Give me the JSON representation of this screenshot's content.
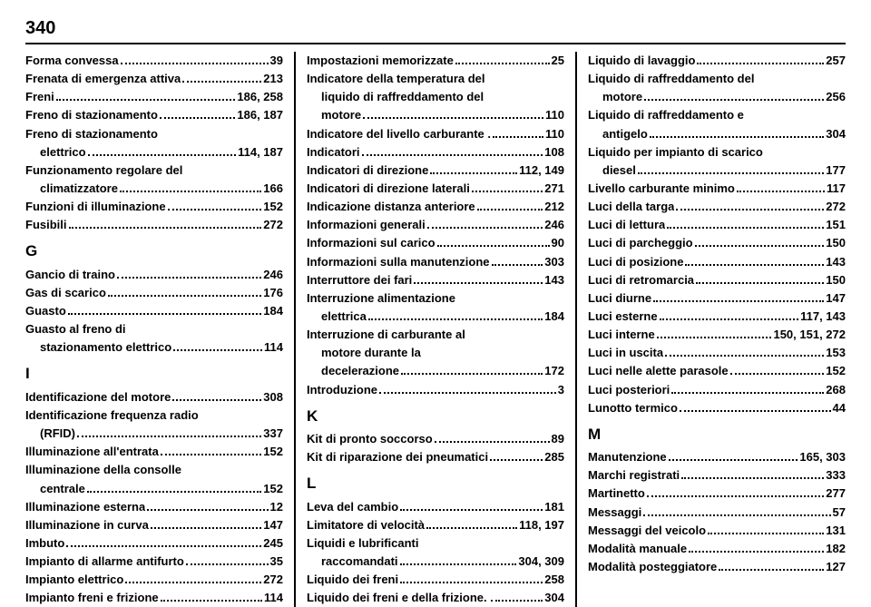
{
  "pageNumber": "340",
  "columns": [
    {
      "items": [
        {
          "type": "entry",
          "label": "Forma convessa",
          "page": "39"
        },
        {
          "type": "entry",
          "label": "Frenata di emergenza attiva",
          "page": "213"
        },
        {
          "type": "entry",
          "label": "Freni",
          "page": "186, 258"
        },
        {
          "type": "entry",
          "label": "Freno di stazionamento",
          "page": "186, 187"
        },
        {
          "type": "entry",
          "label": "Freno di stazionamento"
        },
        {
          "type": "entry",
          "label": "elettrico",
          "indent": true,
          "page": "114, 187"
        },
        {
          "type": "entry",
          "label": "Funzionamento regolare del"
        },
        {
          "type": "entry",
          "label": "climatizzatore",
          "indent": true,
          "page": "166"
        },
        {
          "type": "entry",
          "label": "Funzioni di illuminazione",
          "page": "152"
        },
        {
          "type": "entry",
          "label": "Fusibili",
          "page": "272"
        },
        {
          "type": "letter",
          "label": "G"
        },
        {
          "type": "entry",
          "label": "Gancio di traino",
          "page": "246"
        },
        {
          "type": "entry",
          "label": "Gas di scarico",
          "page": "176"
        },
        {
          "type": "entry",
          "label": "Guasto",
          "page": "184"
        },
        {
          "type": "entry",
          "label": "Guasto al freno di"
        },
        {
          "type": "entry",
          "label": "stazionamento elettrico",
          "indent": true,
          "page": "114"
        },
        {
          "type": "letter",
          "label": "I"
        },
        {
          "type": "entry",
          "label": "Identificazione del motore",
          "page": "308"
        },
        {
          "type": "entry",
          "label": "Identificazione frequenza radio"
        },
        {
          "type": "entry",
          "label": "(RFID)",
          "indent": true,
          "page": "337"
        },
        {
          "type": "entry",
          "label": "Illuminazione all'entrata",
          "page": "152"
        },
        {
          "type": "entry",
          "label": "Illuminazione della consolle"
        },
        {
          "type": "entry",
          "label": "centrale",
          "indent": true,
          "page": "152"
        },
        {
          "type": "entry",
          "label": "Illuminazione esterna",
          "page": "12"
        },
        {
          "type": "entry",
          "label": "Illuminazione in curva",
          "page": "147"
        },
        {
          "type": "entry",
          "label": "Imbuto",
          "page": "245"
        },
        {
          "type": "entry",
          "label": "Impianto di allarme antifurto",
          "page": "35"
        },
        {
          "type": "entry",
          "label": "Impianto elettrico",
          "page": "272"
        },
        {
          "type": "entry",
          "label": "Impianto freni e frizione",
          "page": "114"
        }
      ]
    },
    {
      "items": [
        {
          "type": "entry",
          "label": "Impostazioni memorizzate",
          "page": "25"
        },
        {
          "type": "entry",
          "label": "Indicatore della temperatura del"
        },
        {
          "type": "entry",
          "label": "liquido di raffreddamento del",
          "indent": true
        },
        {
          "type": "entry",
          "label": "motore",
          "indent": true,
          "page": "110"
        },
        {
          "type": "entry",
          "label": "Indicatore del livello carburante .",
          "page": "110"
        },
        {
          "type": "entry",
          "label": "Indicatori",
          "page": "108"
        },
        {
          "type": "entry",
          "label": "Indicatori di direzione",
          "page": "112, 149"
        },
        {
          "type": "entry",
          "label": "Indicatori di direzione laterali",
          "page": "271"
        },
        {
          "type": "entry",
          "label": "Indicazione distanza anteriore",
          "page": "212"
        },
        {
          "type": "entry",
          "label": "Informazioni generali",
          "page": "246"
        },
        {
          "type": "entry",
          "label": "Informazioni sul carico",
          "page": "90"
        },
        {
          "type": "entry",
          "label": "Informazioni sulla manutenzione",
          "page": "303"
        },
        {
          "type": "entry",
          "label": "Interruttore dei fari",
          "page": "143"
        },
        {
          "type": "entry",
          "label": "Interruzione alimentazione"
        },
        {
          "type": "entry",
          "label": "elettrica",
          "indent": true,
          "page": "184"
        },
        {
          "type": "entry",
          "label": "Interruzione di carburante al"
        },
        {
          "type": "entry",
          "label": "motore durante la",
          "indent": true
        },
        {
          "type": "entry",
          "label": "decelerazione",
          "indent": true,
          "page": "172"
        },
        {
          "type": "entry",
          "label": "Introduzione",
          "page": "3"
        },
        {
          "type": "letter",
          "label": "K"
        },
        {
          "type": "entry",
          "label": "Kit di pronto soccorso",
          "page": "89"
        },
        {
          "type": "entry",
          "label": "Kit di riparazione dei pneumatici",
          "page": "285"
        },
        {
          "type": "letter",
          "label": "L"
        },
        {
          "type": "entry",
          "label": "Leva del cambio",
          "page": "181"
        },
        {
          "type": "entry",
          "label": "Limitatore di velocità",
          "page": "118, 197"
        },
        {
          "type": "entry",
          "label": "Liquidi e lubrificanti"
        },
        {
          "type": "entry",
          "label": "raccomandati",
          "indent": true,
          "page": "304, 309"
        },
        {
          "type": "entry",
          "label": "Liquido dei freni",
          "page": "258"
        },
        {
          "type": "entry",
          "label": "Liquido dei freni e della frizione. .",
          "page": "304"
        }
      ]
    },
    {
      "items": [
        {
          "type": "entry",
          "label": "Liquido di lavaggio",
          "page": "257"
        },
        {
          "type": "entry",
          "label": "Liquido di raffreddamento del"
        },
        {
          "type": "entry",
          "label": "motore",
          "indent": true,
          "page": "256"
        },
        {
          "type": "entry",
          "label": "Liquido di raffreddamento e"
        },
        {
          "type": "entry",
          "label": "antigelo",
          "indent": true,
          "page": "304"
        },
        {
          "type": "entry",
          "label": "Liquido per impianto di scarico"
        },
        {
          "type": "entry",
          "label": "diesel",
          "indent": true,
          "page": "177"
        },
        {
          "type": "entry",
          "label": "Livello carburante minimo",
          "page": "117"
        },
        {
          "type": "entry",
          "label": "Luci della targa",
          "page": "272"
        },
        {
          "type": "entry",
          "label": "Luci di lettura",
          "page": "151"
        },
        {
          "type": "entry",
          "label": "Luci di parcheggio",
          "page": "150"
        },
        {
          "type": "entry",
          "label": "Luci di posizione",
          "page": "143"
        },
        {
          "type": "entry",
          "label": "Luci di retromarcia",
          "page": "150"
        },
        {
          "type": "entry",
          "label": "Luci diurne",
          "page": "147"
        },
        {
          "type": "entry",
          "label": "Luci esterne",
          "page": "117, 143"
        },
        {
          "type": "entry",
          "label": "Luci interne",
          "page": "150, 151, 272"
        },
        {
          "type": "entry",
          "label": "Luci in uscita",
          "page": "153"
        },
        {
          "type": "entry",
          "label": "Luci nelle alette parasole",
          "page": "152"
        },
        {
          "type": "entry",
          "label": "Luci posteriori",
          "page": "268"
        },
        {
          "type": "entry",
          "label": "Lunotto termico",
          "page": "44"
        },
        {
          "type": "letter",
          "label": "M"
        },
        {
          "type": "entry",
          "label": "Manutenzione",
          "page": "165, 303"
        },
        {
          "type": "entry",
          "label": "Marchi registrati",
          "page": "333"
        },
        {
          "type": "entry",
          "label": "Martinetto",
          "page": "277"
        },
        {
          "type": "entry",
          "label": "Messaggi",
          "page": "57"
        },
        {
          "type": "entry",
          "label": "Messaggi del veicolo",
          "page": "131"
        },
        {
          "type": "entry",
          "label": "Modalità manuale",
          "page": "182"
        },
        {
          "type": "entry",
          "label": "Modalità posteggiatore",
          "page": "127"
        }
      ]
    }
  ]
}
